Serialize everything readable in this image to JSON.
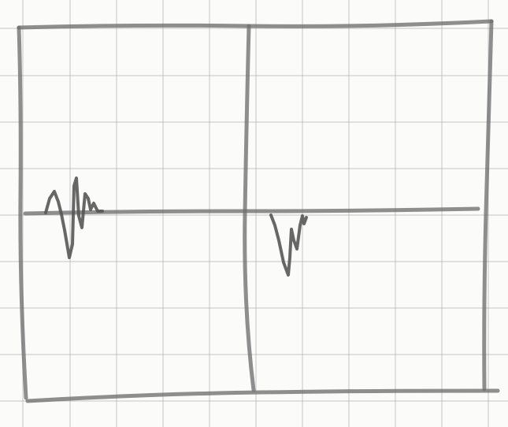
{
  "paper": {
    "background_color": "#fbfbfa",
    "grid_color": "#9c9c9c",
    "pencil_color": "#6f6f6f",
    "pencil_dark_color": "#575757"
  },
  "sketch": {
    "description_icon": "pencil-sketch-frame-with-two-waveforms"
  }
}
